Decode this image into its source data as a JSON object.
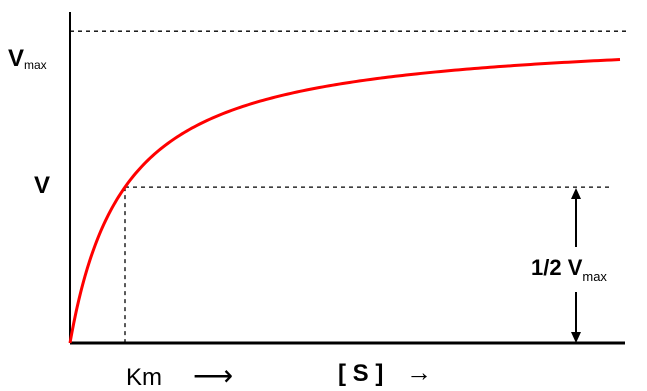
{
  "chart_data": {
    "type": "line",
    "title": "",
    "x_range": [
      0,
      10
    ],
    "y_range": [
      0,
      1.1
    ],
    "vmax": 1,
    "km": 1,
    "series": [
      {
        "color": "#ff0000",
        "equation": "V = Vmax*[S]/(Km+[S])"
      }
    ],
    "labels": {
      "vmax_main": "V",
      "vmax_sub": "max",
      "v": "V",
      "half_vmax_main": "1/2 V",
      "half_vmax_sub": "max",
      "km": "Km",
      "km_arrow": "⟶",
      "substrate": "[ S ]",
      "substrate_arrow": "→"
    },
    "grid": false,
    "legend": "none"
  },
  "colors": {
    "curve": "#ff0000",
    "axis": "#000000",
    "guide": "#000000"
  }
}
